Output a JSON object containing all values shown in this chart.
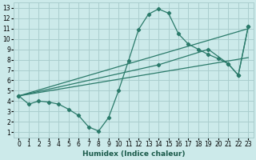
{
  "xlabel": "Humidex (Indice chaleur)",
  "bg_color": "#cceaea",
  "grid_color": "#aacece",
  "line_color": "#2a7a6a",
  "xlim": [
    -0.5,
    23.5
  ],
  "ylim": [
    0.5,
    13.5
  ],
  "xticks": [
    0,
    1,
    2,
    3,
    4,
    5,
    6,
    7,
    8,
    9,
    10,
    11,
    12,
    13,
    14,
    15,
    16,
    17,
    18,
    19,
    20,
    21,
    22,
    23
  ],
  "yticks": [
    1,
    2,
    3,
    4,
    5,
    6,
    7,
    8,
    9,
    10,
    11,
    12,
    13
  ],
  "curve_x": [
    0,
    1,
    2,
    3,
    4,
    5,
    6,
    7,
    8,
    9,
    10,
    11,
    12,
    13,
    14,
    15,
    16,
    17,
    18,
    19,
    20,
    21,
    22,
    23
  ],
  "curve_y": [
    4.5,
    3.7,
    4.0,
    3.9,
    3.7,
    3.2,
    2.6,
    1.5,
    1.1,
    2.4,
    5.0,
    7.9,
    10.9,
    12.4,
    12.9,
    12.5,
    10.5,
    9.5,
    9.0,
    8.5,
    8.1,
    7.6,
    6.5,
    11.2
  ],
  "trend1_x": [
    0,
    23
  ],
  "trend1_y": [
    4.5,
    11.0
  ],
  "trend2_x": [
    0,
    23
  ],
  "trend2_y": [
    4.5,
    8.2
  ],
  "poly_x": [
    0,
    14,
    19,
    21,
    22,
    23
  ],
  "poly_y": [
    4.5,
    7.5,
    9.0,
    7.6,
    6.5,
    11.2
  ]
}
